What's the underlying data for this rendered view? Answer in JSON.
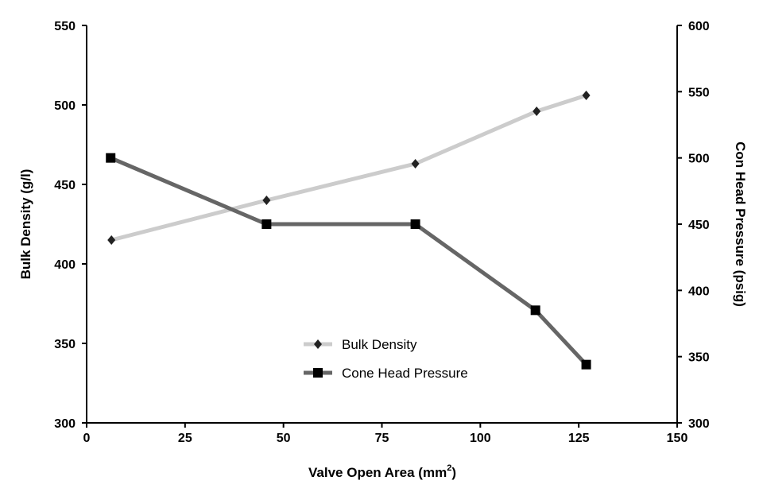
{
  "chart_data": {
    "type": "line",
    "xlabel": "Valve Open Area (mm",
    "xlabel_superscript": "2",
    "xlabel_suffix": ")",
    "ylabel_left": "Bulk Density (g/l)",
    "ylabel_right": "Con Head Pressure (psig)",
    "xlim": [
      0,
      150
    ],
    "ylim_left": [
      300,
      550
    ],
    "ylim_right": [
      300,
      600
    ],
    "x_ticks": [
      "0",
      "25",
      "50",
      "75",
      "100",
      "125",
      "150"
    ],
    "y_left_ticks": [
      "300",
      "350",
      "400",
      "450",
      "500",
      "550"
    ],
    "y_right_ticks": [
      "300",
      "350",
      "400",
      "450",
      "500",
      "550",
      "600"
    ],
    "grid": false,
    "legend_placement": "bottom-center",
    "series": [
      {
        "name": "Bulk Density",
        "axis": "left",
        "color": "#cccccc",
        "marker": "diamond",
        "marker_color": "#222222",
        "x": [
          6.3,
          45.7,
          83.5,
          114.3,
          126.9
        ],
        "y": [
          415,
          440,
          463,
          496,
          506
        ]
      },
      {
        "name": "Cone Head Pressure",
        "axis": "right",
        "color": "#666666",
        "marker": "square",
        "marker_color": "#000000",
        "x": [
          6.1,
          45.7,
          83.5,
          114.0,
          126.9
        ],
        "y": [
          500,
          450,
          450,
          385,
          344
        ]
      }
    ]
  }
}
